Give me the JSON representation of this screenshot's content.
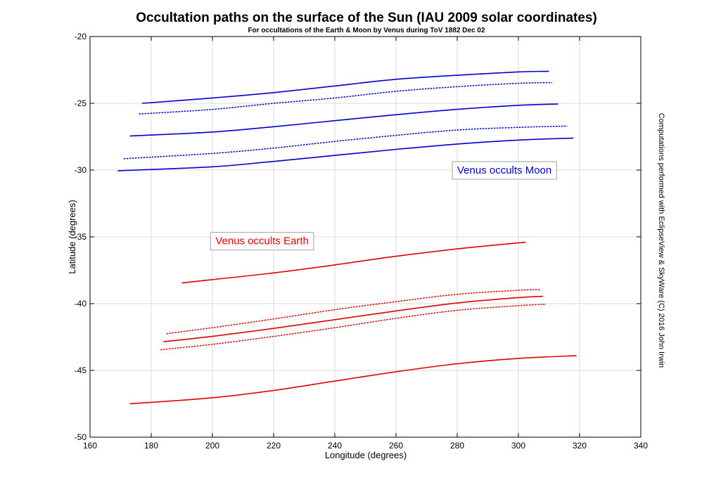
{
  "chart_data": {
    "type": "line",
    "title": "Occultation paths on the surface of the Sun (IAU 2009 solar coordinates)",
    "subtitle": "For occultations of the Earth & Moon by Venus during ToV 1882 Dec 02",
    "xlabel": "Longitude (degrees)",
    "ylabel": "Latitude (degrees)",
    "xlim": [
      160,
      340
    ],
    "ylim": [
      -50,
      -20
    ],
    "xticks": [
      160,
      180,
      200,
      220,
      240,
      260,
      280,
      300,
      320,
      340
    ],
    "yticks": [
      -50,
      -45,
      -40,
      -35,
      -30,
      -25,
      -20
    ],
    "grid": true,
    "credit": "Computations performed with EclipseView & SkyWare (C) 2016 John Irwin",
    "annotations": [
      {
        "text": "Venus occults Moon",
        "x": 280,
        "y": -30,
        "color": "#0000cc"
      },
      {
        "text": "Venus occults Earth",
        "x": 201,
        "y": -35.3,
        "color": "#e00000"
      }
    ],
    "series": [
      {
        "group": "moon",
        "color": "#0000cc",
        "style": "solid",
        "x": [
          177,
          200,
          220,
          240,
          260,
          280,
          300,
          310
        ],
        "y": [
          -25.0,
          -24.6,
          -24.2,
          -23.7,
          -23.2,
          -22.9,
          -22.65,
          -22.6
        ]
      },
      {
        "group": "moon",
        "color": "#0000cc",
        "style": "dotted",
        "x": [
          176,
          200,
          220,
          240,
          260,
          280,
          300,
          311
        ],
        "y": [
          -25.8,
          -25.45,
          -25.0,
          -24.6,
          -24.1,
          -23.75,
          -23.5,
          -23.45
        ]
      },
      {
        "group": "moon",
        "color": "#0000cc",
        "style": "solid",
        "x": [
          173,
          200,
          220,
          240,
          260,
          280,
          300,
          313
        ],
        "y": [
          -27.45,
          -27.15,
          -26.75,
          -26.3,
          -25.85,
          -25.45,
          -25.15,
          -25.05
        ]
      },
      {
        "group": "moon",
        "color": "#0000cc",
        "style": "dotted",
        "x": [
          171,
          200,
          220,
          240,
          260,
          280,
          300,
          316
        ],
        "y": [
          -29.15,
          -28.75,
          -28.35,
          -27.85,
          -27.4,
          -27.0,
          -26.8,
          -26.7
        ]
      },
      {
        "group": "moon",
        "color": "#0000cc",
        "style": "solid",
        "x": [
          169,
          200,
          220,
          240,
          260,
          280,
          300,
          318
        ],
        "y": [
          -30.05,
          -29.75,
          -29.35,
          -28.9,
          -28.45,
          -28.05,
          -27.75,
          -27.6
        ]
      },
      {
        "group": "earth",
        "color": "#e00000",
        "style": "solid",
        "x": [
          190,
          200,
          220,
          240,
          260,
          280,
          300,
          302
        ],
        "y": [
          -38.45,
          -38.2,
          -37.7,
          -37.1,
          -36.45,
          -35.9,
          -35.45,
          -35.4
        ]
      },
      {
        "group": "earth",
        "color": "#e00000",
        "style": "dotted",
        "x": [
          185,
          200,
          220,
          240,
          260,
          280,
          300,
          307
        ],
        "y": [
          -42.25,
          -41.8,
          -41.15,
          -40.45,
          -39.85,
          -39.3,
          -39.0,
          -38.95
        ]
      },
      {
        "group": "earth",
        "color": "#e00000",
        "style": "solid",
        "x": [
          184,
          200,
          220,
          240,
          260,
          280,
          300,
          308
        ],
        "y": [
          -42.85,
          -42.45,
          -41.85,
          -41.2,
          -40.55,
          -39.95,
          -39.55,
          -39.45
        ]
      },
      {
        "group": "earth",
        "color": "#e00000",
        "style": "dotted",
        "x": [
          183,
          200,
          220,
          240,
          260,
          280,
          300,
          309
        ],
        "y": [
          -43.45,
          -43.05,
          -42.45,
          -41.8,
          -41.1,
          -40.5,
          -40.15,
          -40.05
        ]
      },
      {
        "group": "earth",
        "color": "#e00000",
        "style": "solid",
        "x": [
          173,
          200,
          220,
          240,
          260,
          280,
          300,
          319
        ],
        "y": [
          -47.5,
          -47.05,
          -46.5,
          -45.8,
          -45.1,
          -44.5,
          -44.1,
          -43.9
        ]
      }
    ]
  }
}
